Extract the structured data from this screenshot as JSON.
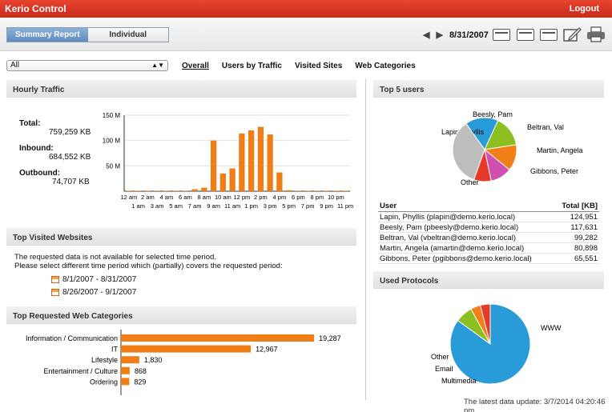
{
  "app": {
    "title": "Kerio Control",
    "logout": "Logout"
  },
  "view_toggle": {
    "summary": "Summary Report",
    "individual": "Individual"
  },
  "date_nav": {
    "prev_arrow": "◀",
    "next_arrow": "▶",
    "date": "8/31/2007"
  },
  "filter": {
    "selected": "All",
    "arrow": "▲▼"
  },
  "tabs": [
    "Overall",
    "Users by Traffic",
    "Visited Sites",
    "Web Categories"
  ],
  "hourly": {
    "heading": "Hourly Traffic",
    "total_label": "Total:",
    "total_value": "759,259 KB",
    "inbound_label": "Inbound:",
    "inbound_value": "684,552 KB",
    "outbound_label": "Outbound:",
    "outbound_value": "74,707 KB"
  },
  "chart_data": [
    {
      "type": "bar",
      "title": "",
      "ylim": [
        0,
        150
      ],
      "y_ticks": [
        "150 M",
        "100 M",
        "50 M"
      ],
      "y_tick_values": [
        150,
        100,
        50
      ],
      "categories_top": [
        "12 am",
        "2 am",
        "4 am",
        "6 am",
        "8 am",
        "10 am",
        "12 pm",
        "2 pm",
        "4 pm",
        "6 pm",
        "8 pm",
        "10 pm"
      ],
      "categories_bottom": [
        "1 am",
        "3 am",
        "5 am",
        "7 am",
        "9 am",
        "11 am",
        "1 pm",
        "3 pm",
        "5 pm",
        "7 pm",
        "9 pm",
        "11 pm"
      ],
      "values": [
        1,
        1,
        1,
        1,
        1,
        1,
        1,
        4,
        7,
        100,
        35,
        45,
        114,
        120,
        127,
        112,
        37,
        2,
        1,
        1,
        1,
        1,
        1,
        1
      ],
      "color": "#f07e16"
    },
    {
      "type": "bar",
      "orientation": "horizontal",
      "categories": [
        "Information / Communication",
        "IT",
        "Lifestyle",
        "Entertainment / Culture",
        "Ordering"
      ],
      "values": [
        19287,
        12967,
        1830,
        868,
        829
      ],
      "labels": [
        "19,287",
        "12,967",
        "1,830",
        "868",
        "829"
      ],
      "xlim": [
        0,
        20000
      ],
      "color": "#f07e16"
    },
    {
      "type": "pie",
      "categories": [
        "Lapin, Phyllis",
        "Beesly, Pam",
        "Beltran, Val",
        "Martin, Angela",
        "Gibbons, Peter",
        "Other"
      ],
      "values": [
        124951,
        117631,
        99282,
        80898,
        65551,
        259000
      ],
      "colors": [
        "#2a9bd9",
        "#8cbf1f",
        "#f27e17",
        "#d14fb0",
        "#e53a2a",
        "#bdbdbd"
      ]
    },
    {
      "type": "pie",
      "categories": [
        "WWW",
        "Multimedia",
        "Email",
        "Other"
      ],
      "values": [
        85,
        7,
        4,
        4
      ],
      "colors": [
        "#2a9bd9",
        "#8cbf1f",
        "#f27e17",
        "#e53a2a"
      ]
    }
  ],
  "top_sites": {
    "heading": "Top Visited Websites",
    "note1": "The requested data is not available for selected time period.",
    "note2": "Please select different time period which (partially) covers the requested period:",
    "periods": [
      "8/1/2007 - 8/31/2007",
      "8/26/2007 - 9/1/2007"
    ]
  },
  "categories": {
    "heading": "Top Requested Web Categories"
  },
  "top_users": {
    "heading": "Top 5 users",
    "col_user": "User",
    "col_total": "Total [KB]",
    "rows": [
      {
        "user": "Lapin, Phyllis (plapin@demo.kerio.local)",
        "total": "124,951"
      },
      {
        "user": "Beesly, Pam (pbeesly@demo.kerio.local)",
        "total": "117,631"
      },
      {
        "user": "Beltran, Val (vbeltran@demo.kerio.local)",
        "total": "99,282"
      },
      {
        "user": "Martin, Angela (amartin@demo.kerio.local)",
        "total": "80,898"
      },
      {
        "user": "Gibbons, Peter (pgibbons@demo.kerio.local)",
        "total": "65,551"
      }
    ]
  },
  "protocols": {
    "heading": "Used Protocols"
  },
  "footer": "The latest data update: 3/7/2014 04:20:46 pm",
  "icons": [
    "view-single-icon",
    "view-split-icon",
    "view-list-icon",
    "edit-icon",
    "print-icon",
    "calendar-icon"
  ]
}
